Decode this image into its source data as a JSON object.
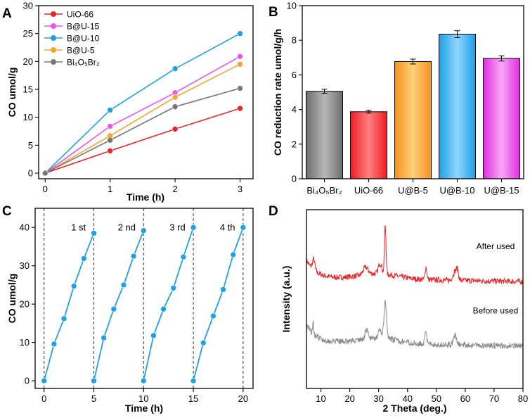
{
  "panels": {
    "A": "A",
    "B": "B",
    "C": "C",
    "D": "D"
  },
  "chart_data": [
    {
      "panel": "A",
      "type": "line",
      "xlabel": "Time (h)",
      "ylabel": "CO umol/g",
      "xlim": [
        -0.1,
        3.2
      ],
      "ylim": [
        -1,
        30
      ],
      "xticks": [
        0,
        1,
        2,
        3
      ],
      "yticks": [
        0,
        5,
        10,
        15,
        20,
        25,
        30
      ],
      "x": [
        0,
        1,
        2,
        3
      ],
      "series": [
        {
          "name": "UiO-66",
          "color": "#e8262a",
          "values": [
            0,
            4.0,
            7.9,
            11.6
          ]
        },
        {
          "name": "B@U-15",
          "color": "#ee52ee",
          "values": [
            0,
            8.4,
            14.4,
            20.9
          ]
        },
        {
          "name": "B@U-10",
          "color": "#1ea2e4",
          "values": [
            0,
            11.3,
            18.7,
            25.0
          ]
        },
        {
          "name": "B@U-5",
          "color": "#f5a52e",
          "values": [
            0,
            6.7,
            13.6,
            19.5
          ]
        },
        {
          "name": "Bi₄O₅Br₂",
          "color": "#777777",
          "values": [
            0,
            5.9,
            11.9,
            15.2
          ]
        }
      ]
    },
    {
      "panel": "B",
      "type": "bar",
      "ylabel": "CO reduction rate umol/g/h",
      "ylim": [
        0,
        10
      ],
      "yticks": [
        0,
        2,
        4,
        6,
        8,
        10
      ],
      "categories": [
        "Bi₄O₅Br₂",
        "UiO-66",
        "U@B-5",
        "U@B-10",
        "U@B-15"
      ],
      "values": [
        5.05,
        3.87,
        6.77,
        8.35,
        6.95
      ],
      "errors": [
        0.12,
        0.08,
        0.14,
        0.2,
        0.15
      ],
      "colors": [
        "#6e6e6e",
        "#ee1c24",
        "#f7931e",
        "#1e9fe6",
        "#e22de2"
      ],
      "light_colors": [
        "#b8b8b8",
        "#ff8080",
        "#ffd07a",
        "#8fd6ff",
        "#f8a8f8"
      ]
    },
    {
      "panel": "C",
      "type": "line",
      "xlabel": "Time (h)",
      "ylabel": "CO umol/g",
      "xlim": [
        -0.9,
        21
      ],
      "ylim": [
        -2,
        45
      ],
      "xticks": [
        0,
        5,
        10,
        15,
        20
      ],
      "yticks": [
        0,
        10,
        20,
        30,
        40
      ],
      "color": "#1ea2e4",
      "cycle_lines": [
        0,
        5,
        10,
        15,
        20
      ],
      "cycle_labels": [
        "1 st",
        "2 nd",
        "3 rd",
        "4 th"
      ],
      "series": [
        {
          "name": "1 st",
          "x": [
            0,
            1,
            2,
            3,
            4,
            5
          ],
          "values": [
            0,
            9.6,
            16.2,
            24.7,
            31.9,
            38.5
          ]
        },
        {
          "name": "2 nd",
          "x": [
            5,
            6,
            7,
            8,
            9,
            10
          ],
          "values": [
            0,
            11.2,
            18.7,
            25.0,
            32.5,
            39.2
          ]
        },
        {
          "name": "3 rd",
          "x": [
            10,
            11,
            12,
            13,
            14,
            15
          ],
          "values": [
            0,
            11.8,
            18.7,
            24.2,
            32.3,
            40.0
          ]
        },
        {
          "name": "4 th",
          "x": [
            15,
            16,
            17,
            18,
            19,
            20
          ],
          "values": [
            0,
            9.9,
            16.9,
            23.8,
            32.9,
            40.0
          ]
        }
      ]
    },
    {
      "panel": "D",
      "type": "line",
      "xlabel": "2 Theta (deg.)",
      "ylabel": "Intensity (a.u.)",
      "xlim": [
        5,
        80
      ],
      "xticks": [
        10,
        20,
        30,
        40,
        50,
        60,
        70,
        80
      ],
      "ylim": [
        0,
        100
      ],
      "series": [
        {
          "name": "After used",
          "color": "#e8262a",
          "baseline": 62,
          "seed": 7,
          "peaks": [
            [
              7.5,
              6,
              0.6
            ],
            [
              25.5,
              4,
              1.2
            ],
            [
              30.5,
              6,
              0.8
            ],
            [
              32.3,
              27,
              0.38
            ],
            [
              46.4,
              7,
              0.45
            ],
            [
              56.5,
              5,
              1.0
            ],
            [
              57.3,
              4,
              0.5
            ]
          ]
        },
        {
          "name": "Before used",
          "color": "#8c8c8c",
          "baseline": 26,
          "seed": 19,
          "peaks": [
            [
              7.3,
              7,
              0.3
            ],
            [
              25.8,
              5,
              0.7
            ],
            [
              30.5,
              4,
              0.9
            ],
            [
              32.3,
              20,
              0.6
            ],
            [
              46.3,
              6,
              0.5
            ],
            [
              56.5,
              5,
              0.8
            ]
          ]
        }
      ]
    }
  ]
}
